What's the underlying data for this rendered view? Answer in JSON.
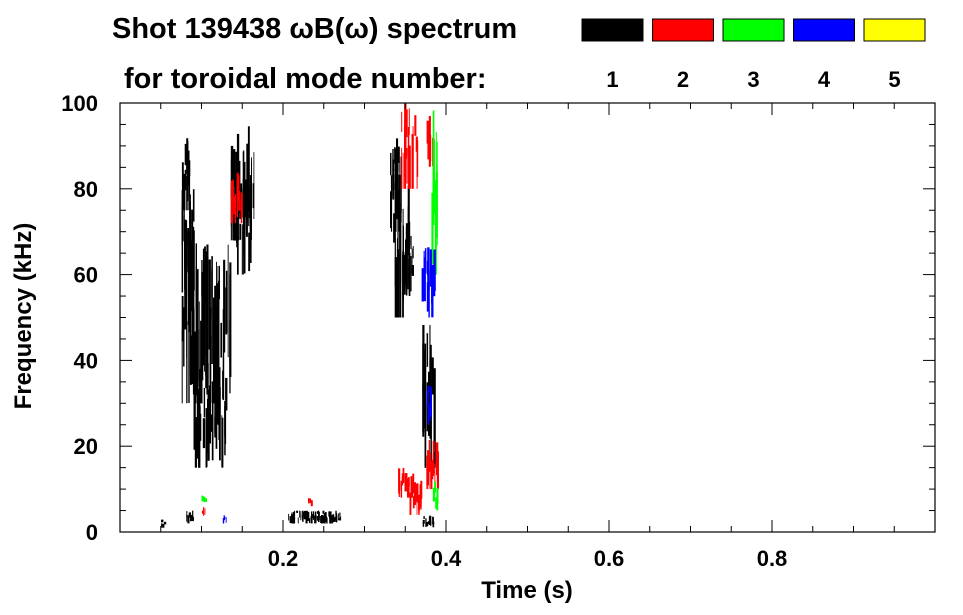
{
  "chart_data": {
    "type": "heatmap",
    "title_line1": "Shot 139438 ωB(ω) spectrum",
    "title_line2": "for toroidal mode number:",
    "xlabel": "Time (s)",
    "ylabel": "Frequency (kHz)",
    "xlim": [
      0.0,
      1.0
    ],
    "ylim": [
      0,
      100
    ],
    "x_ticks": [
      0.2,
      0.4,
      0.6,
      0.8
    ],
    "x_tick_labels": [
      "0.2",
      "0.4",
      "0.6",
      "0.8"
    ],
    "y_ticks": [
      0,
      20,
      40,
      60,
      80,
      100
    ],
    "y_tick_labels": [
      "0",
      "20",
      "40",
      "60",
      "80",
      "100"
    ],
    "legend": {
      "placement": "top-right",
      "entries": [
        {
          "label": "1",
          "color": "#000000"
        },
        {
          "label": "2",
          "color": "#ff0000"
        },
        {
          "label": "3",
          "color": "#00ff00"
        },
        {
          "label": "4",
          "color": "#0000ff"
        },
        {
          "label": "5",
          "color": "#ffff00"
        }
      ]
    },
    "series": [
      {
        "mode": "1",
        "color": "#000000",
        "regions": [
          {
            "t": [
              0.075,
              0.085
            ],
            "f": [
              75,
              93
            ]
          },
          {
            "t": [
              0.075,
              0.09
            ],
            "f": [
              55,
              80
            ]
          },
          {
            "t": [
              0.075,
              0.135
            ],
            "f": [
              30,
              68
            ]
          },
          {
            "t": [
              0.09,
              0.13
            ],
            "f": [
              15,
              40
            ]
          },
          {
            "t": [
              0.135,
              0.165
            ],
            "f": [
              68,
              95
            ]
          },
          {
            "t": [
              0.14,
              0.16
            ],
            "f": [
              60,
              80
            ]
          },
          {
            "t": [
              0.33,
              0.345
            ],
            "f": [
              70,
              92
            ]
          },
          {
            "t": [
              0.335,
              0.355
            ],
            "f": [
              50,
              85
            ]
          },
          {
            "t": [
              0.345,
              0.36
            ],
            "f": [
              55,
              70
            ]
          },
          {
            "t": [
              0.37,
              0.385
            ],
            "f": [
              15,
              50
            ]
          },
          {
            "t": [
              0.05,
              0.055
            ],
            "f": [
              1,
              3
            ]
          },
          {
            "t": [
              0.08,
              0.09
            ],
            "f": [
              2,
              5
            ]
          },
          {
            "t": [
              0.205,
              0.27
            ],
            "f": [
              2,
              5
            ]
          },
          {
            "t": [
              0.37,
              0.385
            ],
            "f": [
              1,
              4
            ]
          }
        ]
      },
      {
        "mode": "2",
        "color": "#ff0000",
        "regions": [
          {
            "t": [
              0.345,
              0.365
            ],
            "f": [
              80,
              100
            ]
          },
          {
            "t": [
              0.375,
              0.385
            ],
            "f": [
              80,
              97
            ]
          },
          {
            "t": [
              0.135,
              0.15
            ],
            "f": [
              72,
              84
            ]
          },
          {
            "t": [
              0.34,
              0.36
            ],
            "f": [
              8,
              15
            ]
          },
          {
            "t": [
              0.375,
              0.39
            ],
            "f": [
              10,
              22
            ]
          },
          {
            "t": [
              0.355,
              0.37
            ],
            "f": [
              4,
              12
            ]
          },
          {
            "t": [
              0.1,
              0.105
            ],
            "f": [
              3,
              6
            ]
          },
          {
            "t": [
              0.23,
              0.235
            ],
            "f": [
              6,
              8
            ]
          }
        ]
      },
      {
        "mode": "3",
        "color": "#00ff00",
        "regions": [
          {
            "t": [
              0.382,
              0.39
            ],
            "f": [
              60,
              100
            ]
          },
          {
            "t": [
              0.383,
              0.39
            ],
            "f": [
              5,
              12
            ]
          },
          {
            "t": [
              0.1,
              0.105
            ],
            "f": [
              7,
              9
            ]
          }
        ]
      },
      {
        "mode": "4",
        "color": "#0000ff",
        "regions": [
          {
            "t": [
              0.37,
              0.385
            ],
            "f": [
              50,
              67
            ]
          },
          {
            "t": [
              0.375,
              0.382
            ],
            "f": [
              25,
              35
            ]
          },
          {
            "t": [
              0.125,
              0.13
            ],
            "f": [
              2,
              4
            ]
          }
        ]
      },
      {
        "mode": "5",
        "color": "#ffff00",
        "regions": []
      }
    ]
  }
}
